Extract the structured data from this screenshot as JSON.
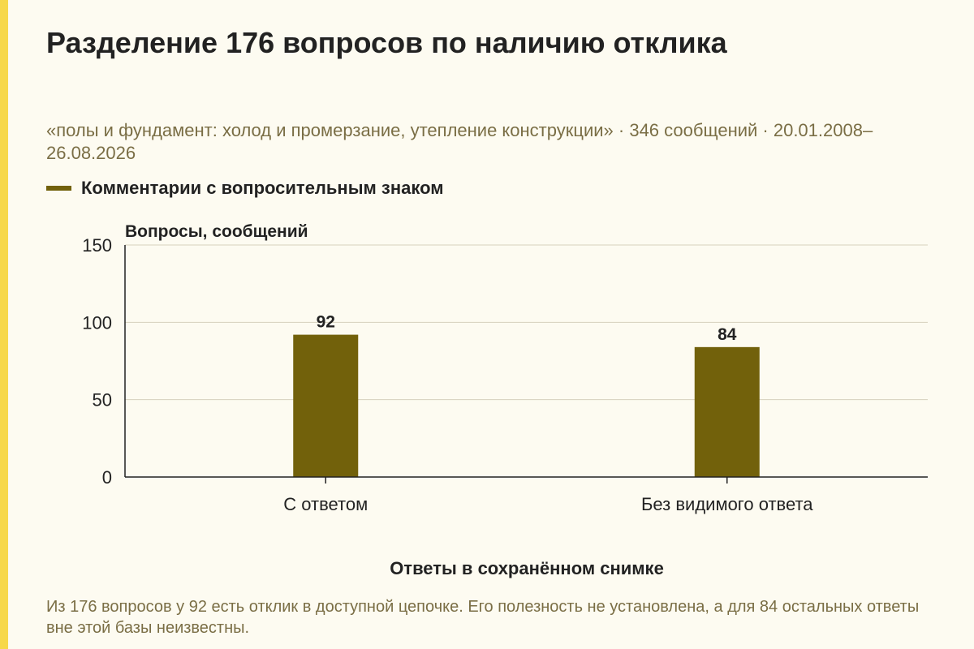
{
  "header": {
    "title": "Разделение 176 вопросов по наличию отклика",
    "subtitle": "«полы и фундамент: холод и промерзание, утепление конструкции» · 346 сообщений · 20.01.2008–26.08.2026"
  },
  "footnote": "Из 176 вопросов у 92 есть отклик в доступной цепочке. Его полезность не установлена, а для 84 остальных ответы вне этой базы неизвестны.",
  "colors": {
    "accent": "#f7d84a",
    "bar": "#72610b",
    "background": "#fdfbf1",
    "muted_text": "#7a6e45"
  },
  "chart_data": {
    "type": "bar",
    "categories": [
      "С ответом",
      "Без видимого ответа"
    ],
    "series": [
      {
        "name": "Комментарии с вопросительным знаком",
        "values": [
          92,
          84
        ]
      }
    ],
    "ylabel": "Вопросы, сообщений",
    "xlabel": "Ответы в сохранённом снимке",
    "ylim": [
      0,
      150
    ],
    "yticks": [
      0,
      50,
      100,
      150
    ],
    "grid": true,
    "legend_position": "top-left",
    "data_labels": true
  }
}
